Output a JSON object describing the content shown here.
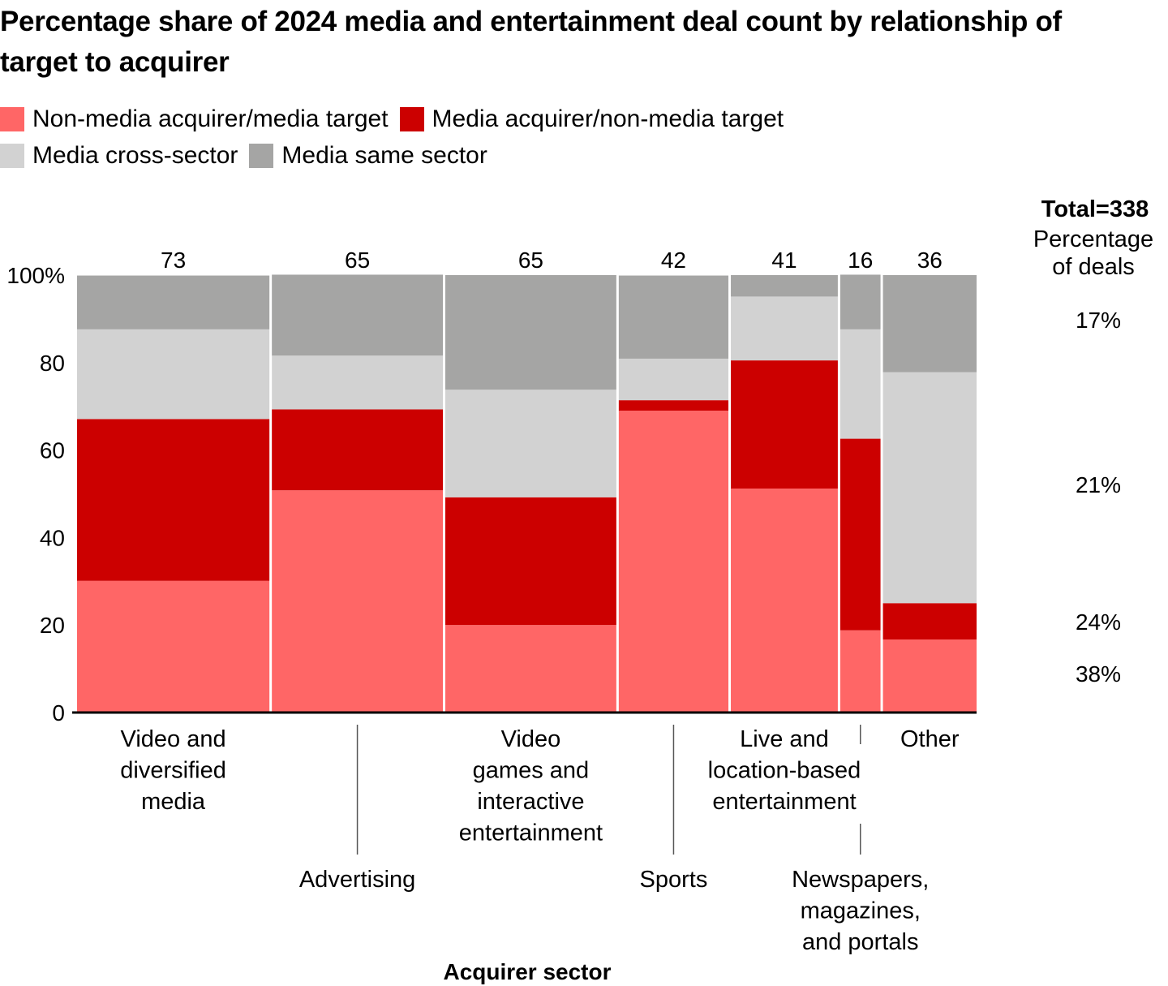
{
  "chart_data": {
    "type": "bar",
    "subtype": "marimekko-stacked-100",
    "title": "Percentage share of 2024 media and entertainment deal count by relationship of target to acquirer",
    "xlabel": "Acquirer sector",
    "ylabel": "",
    "ylim": [
      0,
      100
    ],
    "y_ticks": [
      "0",
      "20",
      "40",
      "60",
      "80",
      "100%"
    ],
    "y_tick_values": [
      0,
      20,
      40,
      60,
      80,
      100
    ],
    "legend_position": "top-left",
    "categories": [
      [
        "Video and",
        "diversified",
        "media"
      ],
      [
        "Advertising"
      ],
      [
        "Video",
        "games and",
        "interactive",
        "entertainment"
      ],
      [
        "Sports"
      ],
      [
        "Live and",
        "location-based",
        "entertainment"
      ],
      [
        "Newspapers,",
        "magazines,",
        "and portals"
      ],
      [
        "Other"
      ]
    ],
    "category_label_tier": [
      "upper",
      "lower",
      "upper",
      "lower",
      "upper",
      "lower",
      "upper"
    ],
    "deal_counts": [
      73,
      65,
      65,
      42,
      41,
      16,
      36
    ],
    "series": [
      {
        "name": "Non-media acquirer/media target",
        "color": "#ff6666",
        "values": [
          30.1,
          50.8,
          20.0,
          69.0,
          51.2,
          18.8,
          16.7
        ]
      },
      {
        "name": "Media acquirer/non-media target",
        "color": "#cc0000",
        "values": [
          37.0,
          18.5,
          29.2,
          2.4,
          29.3,
          43.8,
          8.3
        ]
      },
      {
        "name": "Media cross-sector",
        "color": "#d2d2d2",
        "values": [
          20.5,
          12.3,
          24.6,
          9.5,
          14.6,
          25.0,
          52.8
        ]
      },
      {
        "name": "Media same sector",
        "color": "#a5a5a4",
        "values": [
          12.3,
          18.5,
          26.2,
          19.0,
          4.9,
          12.5,
          22.2
        ]
      }
    ],
    "total": {
      "label": "Total=338",
      "sublabel": [
        "Percentage",
        "of deals"
      ],
      "values": [
        "38%",
        "24%",
        "21%",
        "17%"
      ]
    }
  },
  "legend": {
    "rows": [
      [
        {
          "label": "Non-media acquirer/media target",
          "color": "#ff6666"
        },
        {
          "label": "Media acquirer/non-media target",
          "color": "#cc0000"
        }
      ],
      [
        {
          "label": "Media cross-sector",
          "color": "#d2d2d2"
        },
        {
          "label": "Media same sector",
          "color": "#a5a5a4"
        }
      ]
    ]
  }
}
